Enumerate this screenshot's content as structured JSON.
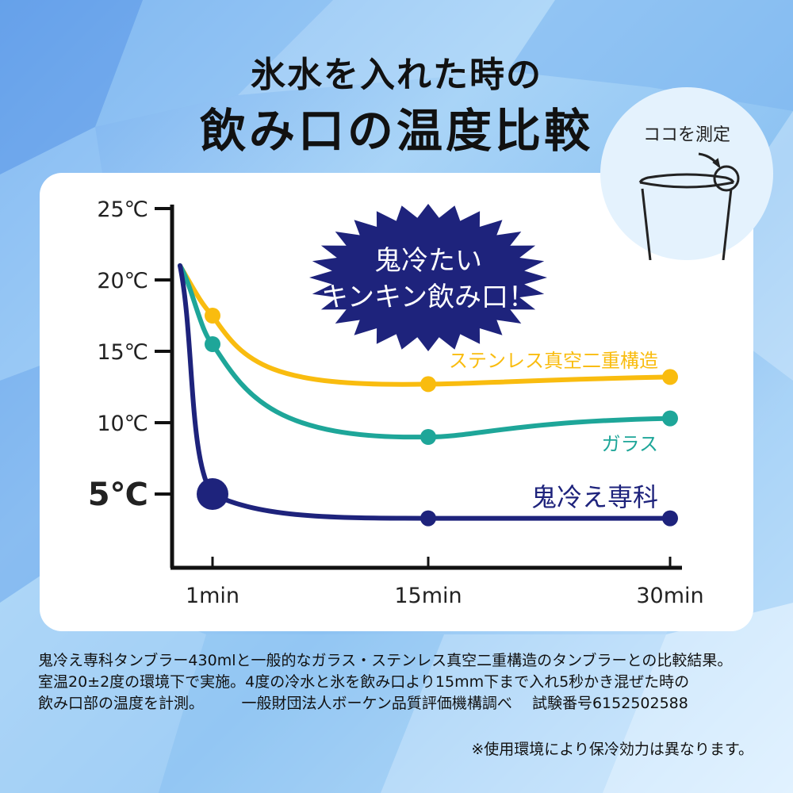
{
  "header": {
    "title_line1": "氷水を入れた時の",
    "title_line2": "飲み口の温度比較"
  },
  "inset": {
    "label": "ココを測定"
  },
  "chart_data": {
    "type": "line",
    "x": [
      "1min",
      "15min",
      "30min"
    ],
    "y_ticks": [
      "25℃",
      "20℃",
      "15℃",
      "10℃",
      "5℃"
    ],
    "y_tick_values": [
      25,
      20,
      15,
      10,
      5
    ],
    "ylim": [
      0,
      25
    ],
    "series": [
      {
        "name": "ステンレス真空二重構造",
        "color": "#f9bc0f",
        "start": 21,
        "values": [
          17.5,
          12.7,
          13.2
        ]
      },
      {
        "name": "ガラス",
        "color": "#1ea699",
        "start": 21,
        "values": [
          15.5,
          9.0,
          10.3
        ]
      },
      {
        "name": "鬼冷え専科",
        "color": "#1e237c",
        "start": 21,
        "values": [
          5.0,
          3.3,
          3.3
        ]
      }
    ],
    "callout": [
      "鬼冷たい",
      "キンキン飲み口！"
    ],
    "grid": false,
    "legend": "inline-labels"
  },
  "notes": {
    "lines": [
      "鬼冷え専科タンブラー430mlと一般的なガラス・ステンレス真空二重構造のタンブラーとの比較結果。",
      "室温20±2度の環境下で実施。4度の冷水と氷を飲み口より15mm下まで入れ5秒かき混ぜた時の",
      "飲み口部の温度を計測。　　　一般財団法人ボーケン品質評価機構調べ　 試験番号6152502588"
    ],
    "footnote": "※使用環境により保冷効力は異なります。"
  },
  "colors": {
    "navy": "#1e237c",
    "yellow": "#f9bc0f",
    "teal": "#1ea699"
  }
}
